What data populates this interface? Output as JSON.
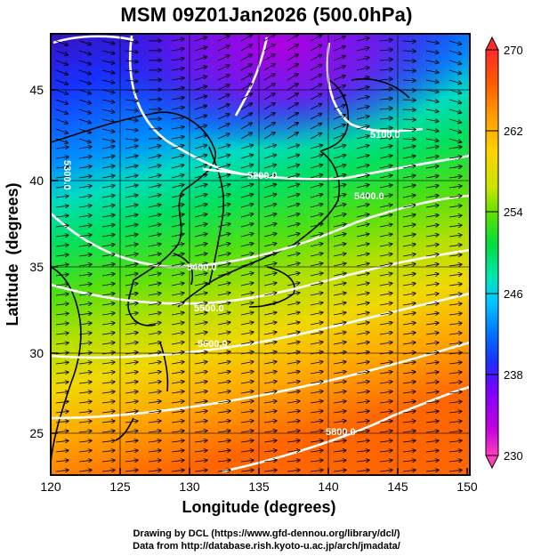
{
  "title": "MSM 09Z01Jan2026 (500.0hPa)",
  "axes": {
    "xlabel": "Longitude (degrees)",
    "ylabel": "Latitude  (degrees)",
    "x_ticks": [
      "120",
      "125",
      "130",
      "135",
      "140",
      "145",
      "150"
    ],
    "y_ticks": [
      "25",
      "30",
      "35",
      "40",
      "45"
    ],
    "xlim": [
      120,
      150
    ],
    "ylim": [
      22.4,
      47.6
    ]
  },
  "colorbar": {
    "ticks": [
      "270",
      "262",
      "254",
      "246",
      "238",
      "230"
    ],
    "range": [
      230,
      270
    ],
    "colors": [
      "#ff3dbe",
      "#c000e0",
      "#7a00ff",
      "#1a2fff",
      "#0072ff",
      "#00c8ff",
      "#00e6b0",
      "#00dc40",
      "#64e000",
      "#c8e400",
      "#ffd200",
      "#ff9a00",
      "#ff5a00",
      "#ff2a2a"
    ]
  },
  "contour_labels": {
    "c5100": "5100.0",
    "c5200": "5200.0",
    "c5300": "5300.0",
    "c5400a": "5400.0",
    "c5400b": "5400.0",
    "c5500": "5500.0",
    "c5600": "5600.0",
    "c5800": "5800.0"
  },
  "credits": {
    "line1": "Drawing by DCL (https://www.gfd-dennou.org/library/dcl/)",
    "line2": "Data from http://database.rish.kyoto-u.ac.jp/arch/jmadata/"
  }
}
